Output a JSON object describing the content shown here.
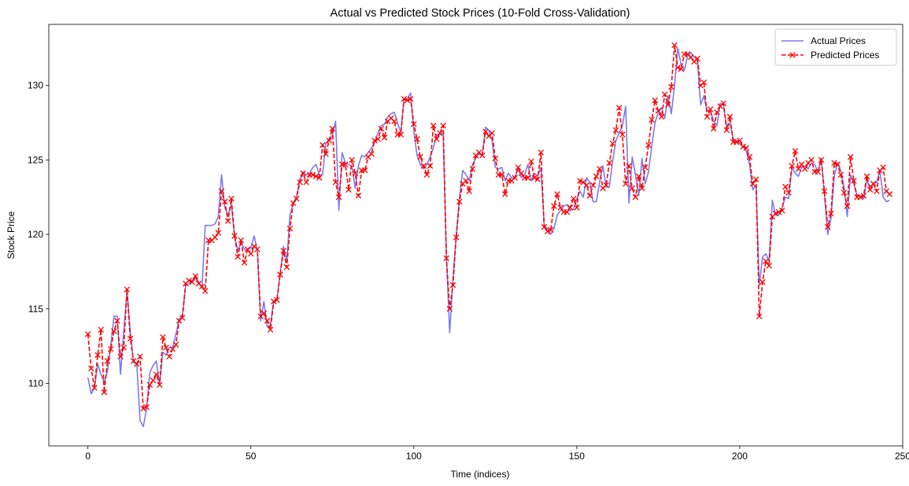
{
  "chart_data": {
    "type": "line",
    "title": "Actual vs Predicted Stock Prices (10-Fold Cross-Validation)",
    "xlabel": "Time (indices)",
    "ylabel": "Stock Price",
    "xlim": [
      -12,
      250
    ],
    "ylim": [
      105.8,
      134.1
    ],
    "xticks": [
      0,
      50,
      100,
      150,
      200,
      250
    ],
    "yticks": [
      110,
      115,
      120,
      125,
      130
    ],
    "grid": false,
    "legend": "top-right",
    "colors": {
      "actual": "#7b7bf0",
      "predicted": "#ff0000"
    },
    "x_start": 0,
    "series": [
      {
        "name": "Actual Prices",
        "style": "solid",
        "values": [
          110.4,
          109.3,
          109.7,
          111.3,
          110.6,
          110.1,
          110.8,
          112.5,
          114.5,
          114.5,
          110.6,
          113.5,
          116.2,
          113.5,
          111.4,
          111.3,
          107.5,
          107.1,
          108.3,
          110.7,
          111.2,
          111.5,
          109.9,
          112.1,
          111.9,
          112.4,
          112.4,
          113.3,
          114.3,
          114.6,
          116.6,
          116.7,
          116.9,
          117.1,
          116.8,
          116.4,
          120.6,
          120.6,
          120.6,
          120.7,
          121.2,
          124.0,
          121.8,
          121.3,
          122.0,
          119.9,
          118.9,
          119.5,
          119.0,
          119.0,
          119.1,
          119.9,
          118.9,
          114.2,
          115.5,
          113.8,
          113.9,
          115.5,
          115.6,
          117.4,
          119.2,
          118.2,
          121.3,
          122.1,
          122.5,
          123.7,
          124.2,
          124.0,
          124.1,
          124.5,
          124.7,
          124.0,
          124.0,
          126.1,
          126.4,
          126.6,
          127.6,
          121.6,
          125.5,
          124.8,
          124.7,
          124.6,
          123.1,
          124.6,
          125.3,
          125.2,
          125.5,
          125.8,
          126.2,
          126.8,
          127.3,
          127.4,
          127.9,
          128.1,
          128.2,
          127.5,
          126.8,
          129.1,
          129.1,
          129.5,
          126.9,
          125.3,
          124.7,
          124.4,
          124.7,
          125.2,
          125.8,
          126.7,
          126.7,
          126.8,
          118.5,
          113.4,
          117.0,
          119.9,
          122.5,
          124.3,
          124.0,
          123.6,
          124.7,
          125.1,
          125.4,
          125.3,
          127.2,
          127.0,
          126.3,
          124.5,
          124.4,
          124.5,
          123.6,
          124.1,
          123.8,
          123.8,
          124.4,
          123.8,
          124.0,
          124.7,
          123.6,
          124.1,
          123.9,
          124.5,
          120.6,
          120.4,
          120.0,
          120.4,
          121.3,
          121.6,
          121.9,
          122.0,
          121.6,
          121.7,
          122.4,
          122.9,
          122.5,
          123.8,
          123.5,
          122.2,
          122.2,
          123.5,
          124.6,
          123.2,
          123.2,
          124.9,
          126.3,
          126.8,
          127.3,
          128.6,
          122.1,
          125.2,
          124.0,
          122.6,
          125.1,
          123.4,
          124.2,
          125.9,
          127.5,
          128.2,
          128.5,
          127.8,
          129.3,
          128.1,
          130.0,
          132.5,
          131.4,
          131.0,
          132.0,
          132.2,
          131.9,
          131.7,
          128.7,
          129.3,
          128.3,
          128.3,
          127.6,
          127.3,
          128.8,
          128.7,
          127.1,
          127.5,
          126.4,
          126.3,
          126.1,
          125.9,
          125.6,
          124.7,
          123.0,
          123.3,
          116.6,
          118.5,
          118.7,
          118.2,
          122.3,
          121.3,
          121.3,
          121.8,
          122.5,
          122.4,
          124.5,
          124.1,
          123.9,
          124.5,
          124.6,
          124.4,
          124.8,
          124.7,
          124.2,
          125.1,
          122.6,
          120.0,
          121.1,
          123.9,
          124.8,
          124.3,
          123.2,
          121.2,
          124.0,
          123.4,
          122.6,
          122.6,
          122.4,
          123.6,
          123.2,
          123.4,
          123.5,
          124.3,
          122.5,
          122.2,
          122.3
        ],
        "name_color": "#7b7bf0"
      },
      {
        "name": "Predicted Prices",
        "style": "dashed-x",
        "values": [
          113.3,
          111.0,
          109.7,
          111.9,
          113.6,
          109.4,
          111.5,
          112.3,
          113.5,
          114.2,
          111.8,
          112.4,
          116.3,
          113.0,
          111.5,
          111.3,
          111.8,
          108.3,
          108.4,
          109.9,
          110.2,
          110.6,
          109.9,
          113.1,
          112.4,
          111.8,
          112.3,
          112.6,
          114.2,
          114.4,
          116.7,
          116.9,
          116.8,
          117.2,
          116.7,
          116.5,
          116.2,
          119.6,
          119.6,
          119.8,
          120.1,
          122.9,
          122.2,
          120.9,
          122.4,
          119.9,
          118.5,
          119.6,
          118.1,
          119.0,
          118.7,
          119.2,
          119.0,
          114.5,
          114.7,
          114.2,
          113.6,
          115.5,
          115.6,
          117.3,
          118.9,
          117.8,
          120.4,
          122.1,
          122.4,
          123.5,
          124.1,
          123.5,
          124.0,
          124.0,
          123.9,
          123.8,
          126.0,
          125.4,
          126.3,
          127.1,
          123.5,
          122.5,
          124.7,
          124.7,
          123.0,
          125.0,
          124.1,
          122.6,
          124.3,
          124.3,
          125.2,
          125.4,
          126.3,
          126.4,
          127.1,
          126.5,
          127.6,
          127.8,
          127.6,
          126.7,
          126.7,
          129.1,
          129.0,
          129.1,
          127.4,
          126.4,
          125.2,
          124.6,
          124.0,
          124.6,
          127.3,
          126.4,
          126.8,
          127.3,
          118.4,
          115.0,
          116.6,
          119.8,
          122.2,
          123.4,
          123.6,
          122.9,
          124.4,
          125.3,
          125.5,
          125.3,
          126.9,
          126.6,
          126.8,
          125.1,
          124.0,
          124.0,
          122.7,
          123.6,
          123.6,
          123.8,
          124.5,
          124.1,
          123.8,
          123.8,
          124.9,
          123.8,
          123.7,
          125.5,
          120.5,
          120.2,
          120.3,
          121.9,
          122.7,
          121.8,
          121.5,
          121.5,
          121.8,
          122.4,
          121.8,
          123.6,
          123.5,
          123.3,
          122.6,
          123.3,
          123.9,
          124.4,
          123.1,
          123.3,
          124.8,
          126.1,
          127.0,
          128.5,
          126.7,
          123.4,
          124.6,
          123.1,
          122.5,
          123.9,
          123.1,
          124.5,
          126.0,
          127.7,
          129.0,
          128.3,
          127.9,
          129.4,
          128.7,
          129.9,
          132.7,
          131.2,
          131.1,
          132.1,
          132.1,
          131.9,
          131.6,
          131.8,
          130.0,
          130.2,
          127.9,
          128.4,
          127.1,
          128.2,
          128.6,
          128.8,
          127.0,
          127.9,
          126.2,
          126.2,
          126.3,
          125.9,
          125.8,
          125.2,
          123.4,
          123.7,
          114.5,
          116.8,
          118.2,
          117.9,
          121.2,
          121.4,
          121.5,
          121.6,
          123.2,
          122.8,
          124.6,
          125.6,
          124.4,
          124.7,
          124.4,
          124.8,
          125.0,
          124.2,
          124.2,
          125.0,
          122.9,
          120.5,
          121.4,
          124.8,
          124.7,
          124.0,
          122.8,
          121.9,
          125.2,
          123.6,
          122.5,
          122.5,
          122.6,
          123.9,
          123.0,
          123.4,
          122.9,
          124.3,
          124.5,
          122.9,
          122.7
        ]
      }
    ]
  }
}
